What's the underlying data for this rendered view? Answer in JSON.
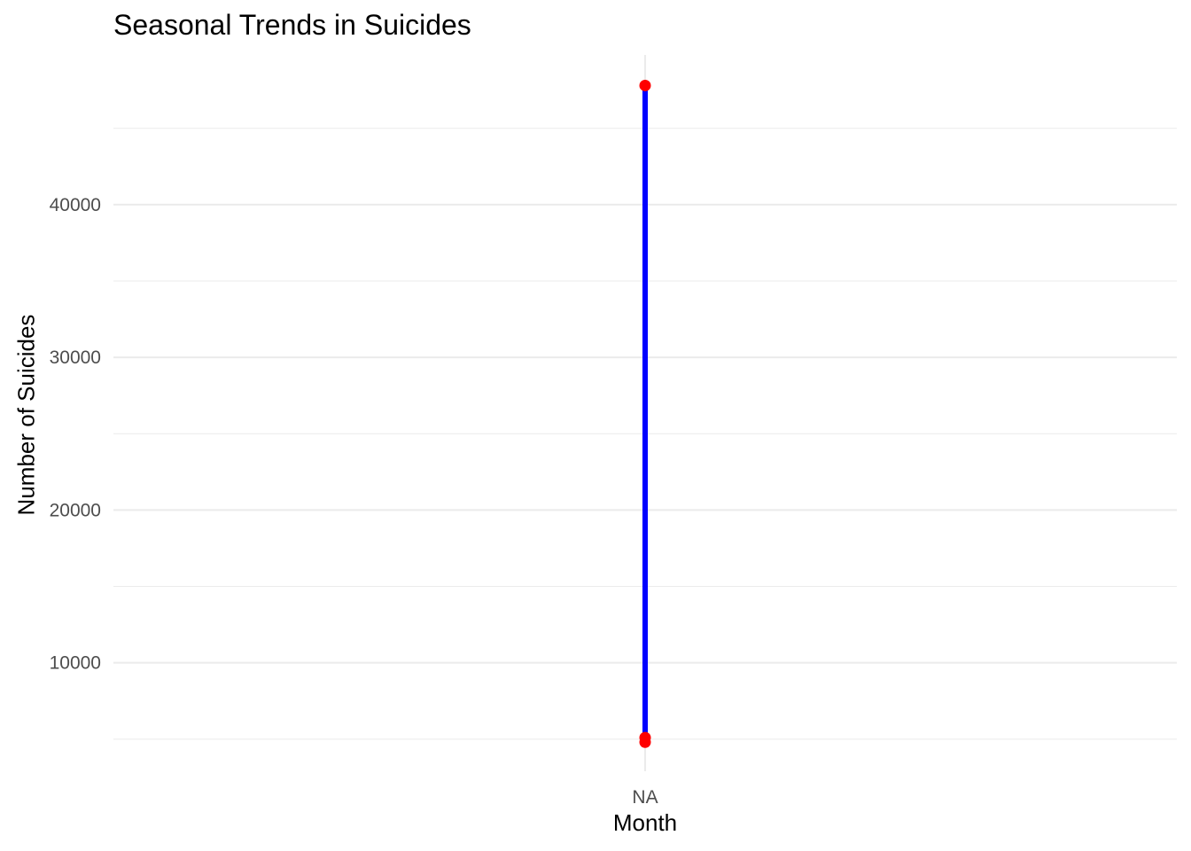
{
  "chart_data": {
    "type": "line",
    "title": "Seasonal Trends in Suicides",
    "xlabel": "Month",
    "ylabel": "Number of Suicides",
    "categories": [
      "NA"
    ],
    "y_ticks": [
      10000,
      20000,
      30000,
      40000
    ],
    "y_tick_labels": [
      "10000",
      "20000",
      "30000",
      "40000"
    ],
    "ylim": [
      2900,
      49800
    ],
    "grid": true,
    "series": [
      {
        "points": [
          {
            "x": "NA",
            "y": 47800
          },
          {
            "x": "NA",
            "y": 5100
          },
          {
            "x": "NA",
            "y": 4800
          }
        ],
        "line_color": "#0000FF",
        "point_color": "#FF0000"
      }
    ]
  }
}
